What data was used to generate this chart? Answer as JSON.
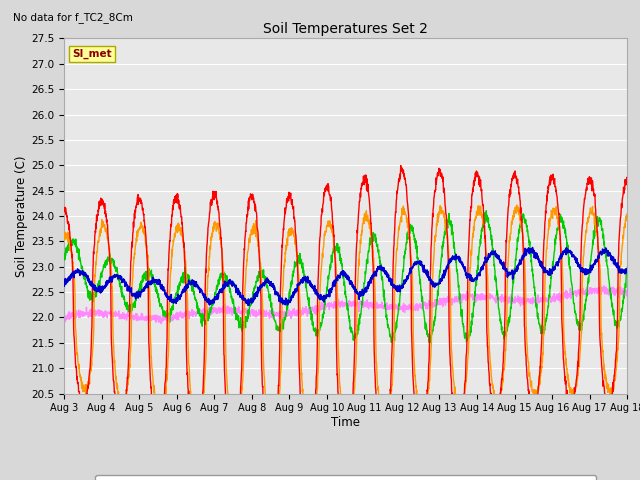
{
  "title": "Soil Temperatures Set 2",
  "subtitle": "No data for f_TC2_8Cm",
  "xlabel": "Time",
  "ylabel": "Soil Temperature (C)",
  "ylim": [
    20.5,
    27.5
  ],
  "background_color": "#d8d8d8",
  "plot_bg_color": "#e8e8e8",
  "series": {
    "TC2_2Cm": {
      "color": "#ff0000",
      "lw": 1.0
    },
    "TC2_4Cm": {
      "color": "#ff9900",
      "lw": 1.0
    },
    "TC2_16Cm": {
      "color": "#00cc00",
      "lw": 1.0
    },
    "TC2_32Cm": {
      "color": "#0000cc",
      "lw": 1.2
    },
    "TC2_50Cm": {
      "color": "#ff88ff",
      "lw": 1.0
    }
  },
  "xtick_labels": [
    "Aug 3",
    "Aug 4",
    "Aug 5",
    "Aug 6",
    "Aug 7",
    "Aug 8",
    "Aug 9",
    "Aug 10",
    "Aug 11",
    "Aug 12",
    "Aug 13",
    "Aug 14",
    "Aug 15",
    "Aug 16",
    "Aug 17",
    "Aug 18"
  ],
  "ytick_vals": [
    20.5,
    21.0,
    21.5,
    22.0,
    22.5,
    23.0,
    23.5,
    24.0,
    24.5,
    25.0,
    25.5,
    26.0,
    26.5,
    27.0,
    27.5
  ],
  "legend_label": "SI_met",
  "n_days": 15,
  "pts_per_day": 144
}
